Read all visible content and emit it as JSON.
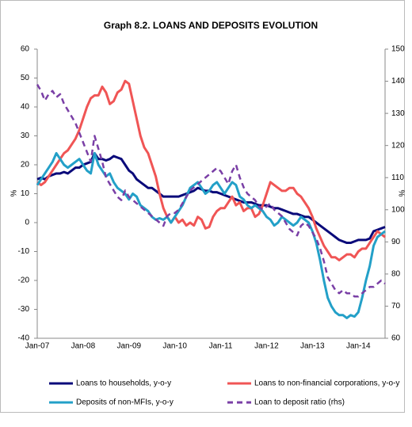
{
  "chart_data": {
    "type": "line",
    "title": "Graph 8.2. LOANS AND DEPOSITS EVOLUTION",
    "y_label": "%",
    "y2_label": "%",
    "categories": [
      "Jan-07",
      null,
      null,
      null,
      null,
      null,
      null,
      null,
      null,
      null,
      null,
      null,
      "Jan-08",
      null,
      null,
      null,
      null,
      null,
      null,
      null,
      null,
      null,
      null,
      null,
      "Jan-09",
      null,
      null,
      null,
      null,
      null,
      null,
      null,
      null,
      null,
      null,
      null,
      "Jan-10",
      null,
      null,
      null,
      null,
      null,
      null,
      null,
      null,
      null,
      null,
      null,
      "Jan-11",
      null,
      null,
      null,
      null,
      null,
      null,
      null,
      null,
      null,
      null,
      null,
      "Jan-12",
      null,
      null,
      null,
      null,
      null,
      null,
      null,
      null,
      null,
      null,
      null,
      "Jan-13",
      null,
      null,
      null,
      null,
      null,
      null,
      null,
      null,
      null,
      null,
      null,
      "Jan-14",
      null,
      null,
      null,
      null,
      null,
      null,
      null
    ],
    "ylim": [
      -40,
      60
    ],
    "yticks": [
      -40,
      -30,
      -20,
      -10,
      0,
      10,
      20,
      30,
      40,
      50,
      60
    ],
    "y2lim": [
      60,
      150
    ],
    "y2ticks": [
      60,
      70,
      80,
      90,
      100,
      110,
      120,
      130,
      140,
      150
    ],
    "series": [
      {
        "name": "Loans to households, y-o-y",
        "color": "#0a0a7a",
        "dash": false,
        "values": [
          15,
          15.5,
          15,
          16,
          16.5,
          17,
          17,
          17.5,
          17,
          18,
          19,
          19,
          20,
          20.5,
          21,
          24,
          22,
          22,
          21.5,
          22,
          23,
          22.5,
          22,
          20,
          18,
          17,
          15,
          14,
          13,
          12,
          12,
          11,
          10,
          9,
          9,
          9,
          9,
          9,
          9.5,
          10,
          10.5,
          11,
          12,
          11.5,
          11,
          11,
          10.5,
          10.5,
          10,
          9.5,
          9,
          8.5,
          8,
          7.5,
          7,
          7,
          7,
          6.5,
          6,
          6,
          6,
          5.5,
          5,
          5,
          4.5,
          4,
          3.5,
          3,
          3,
          2.5,
          2,
          2,
          1,
          0,
          -1,
          -2,
          -3,
          -4,
          -5,
          -6,
          -6.5,
          -7,
          -7,
          -6.5,
          -6,
          -6,
          -6,
          -5.5,
          -3,
          -2.5,
          -2,
          -1.5
        ]
      },
      {
        "name": "Loans to non-financial corporations, y-o-y",
        "color": "#f05555",
        "dash": false,
        "values": [
          14,
          13,
          14,
          16,
          18,
          20,
          22,
          24,
          25,
          27,
          29,
          32,
          36,
          40,
          43,
          44,
          44,
          47,
          45,
          41,
          42,
          45,
          46,
          49,
          48,
          42,
          36,
          30,
          26,
          24,
          20,
          16,
          10,
          5,
          2,
          0,
          2,
          0,
          1,
          -1,
          0,
          -1,
          2,
          1,
          -2,
          -1.5,
          2,
          4,
          5,
          5,
          7,
          9,
          6,
          7,
          4,
          5,
          5,
          2,
          3,
          6,
          10,
          14,
          13,
          12,
          11,
          11,
          12,
          12,
          10,
          9,
          7,
          5,
          2,
          -2,
          -5,
          -8,
          -10,
          -12,
          -12,
          -13,
          -12,
          -11,
          -11,
          -12,
          -10,
          -9,
          -9,
          -7,
          -5,
          -3,
          -4,
          -5
        ]
      },
      {
        "name": "Deposits of non-MFIs, y-o-y",
        "color": "#23a0c8",
        "dash": false,
        "values": [
          13,
          15,
          17,
          19,
          21,
          24,
          22,
          20,
          19,
          20,
          21,
          22,
          20,
          18,
          17,
          24,
          20,
          18,
          16,
          17,
          14,
          12,
          11,
          10,
          8,
          10,
          9,
          6,
          5,
          4,
          2,
          1,
          1.5,
          1,
          2,
          0,
          2,
          4,
          6,
          9,
          12,
          13,
          14,
          12,
          10,
          11,
          13,
          14,
          12,
          10,
          12,
          14,
          13,
          9,
          8,
          6,
          5,
          6,
          5,
          4,
          2,
          1,
          -1,
          0,
          2,
          1,
          0,
          -1,
          0,
          2,
          1,
          0,
          -3,
          -7,
          -13,
          -20,
          -26,
          -29,
          -31,
          -32,
          -32,
          -33,
          -32,
          -32.5,
          -31,
          -26,
          -20,
          -15,
          -8,
          -5,
          -4,
          -3
        ]
      },
      {
        "name": "Loan to deposit ratio (rhs)",
        "color": "#7a3fa6",
        "dash": true,
        "axis": "y2",
        "values": [
          139,
          137,
          134,
          136,
          137,
          135,
          136,
          133,
          131,
          129,
          127,
          124,
          121,
          118,
          115,
          123,
          119,
          115,
          110,
          108,
          106,
          104,
          103,
          106,
          104,
          103,
          102,
          101,
          100,
          99,
          98,
          97,
          96,
          95,
          98,
          99,
          99,
          100,
          102,
          104,
          106,
          107,
          108,
          109,
          110,
          111,
          112,
          113,
          112,
          110,
          108,
          112,
          114,
          110,
          107,
          105,
          104,
          103,
          101,
          100,
          101,
          102,
          100,
          99,
          98,
          96,
          94,
          93,
          92,
          95,
          96,
          95,
          93,
          91,
          88,
          84,
          79,
          77,
          75,
          74,
          75,
          74,
          74,
          73,
          73,
          74,
          75,
          76,
          76,
          77,
          78,
          77
        ]
      }
    ]
  }
}
